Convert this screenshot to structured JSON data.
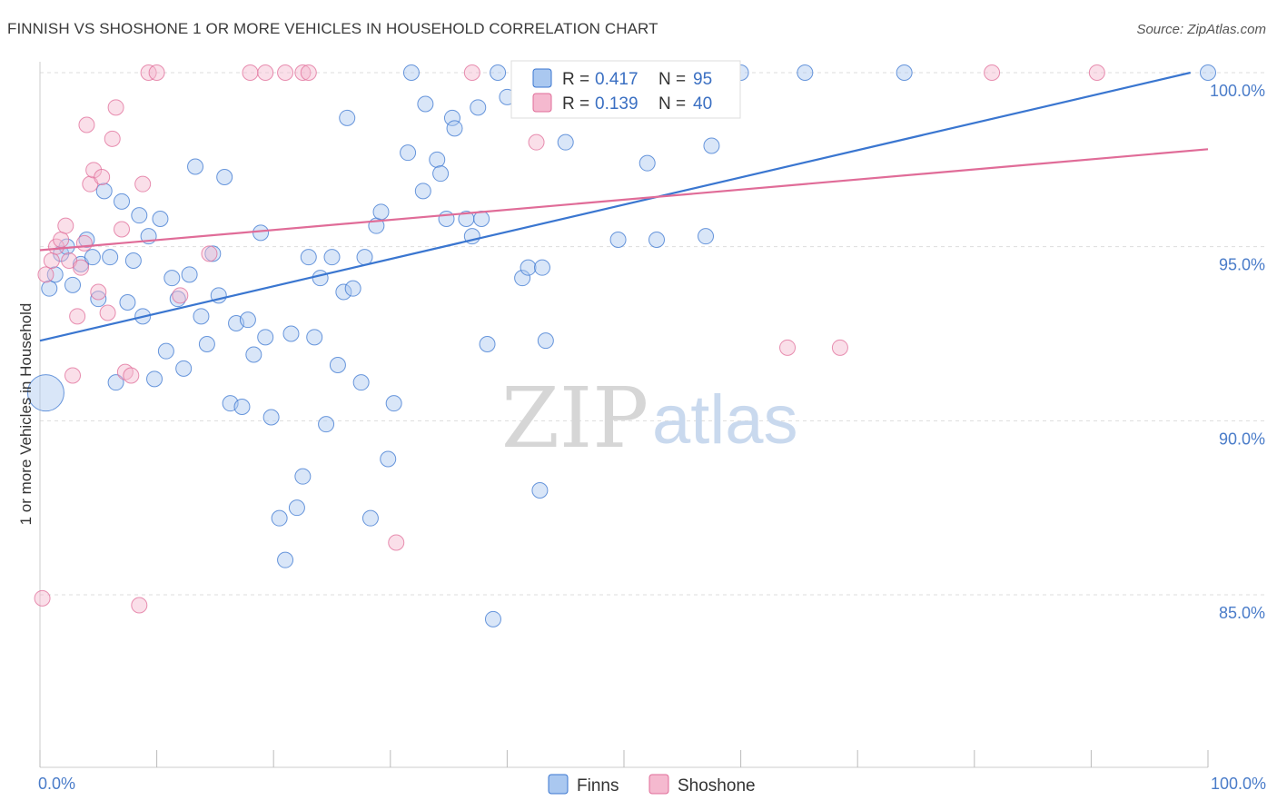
{
  "header": {
    "title": "FINNISH VS SHOSHONE 1 OR MORE VEHICLES IN HOUSEHOLD CORRELATION CHART",
    "source": "Source: ZipAtlas.com"
  },
  "watermark": {
    "zip": "ZIP",
    "atlas": "atlas"
  },
  "colors": {
    "finns": "#3a76d0",
    "finns_fill": "#aac8f0",
    "shoshone": "#e06c98",
    "shoshone_fill": "#f5b9cf",
    "tick": "#4a7cc9",
    "grid": "#dddddd"
  },
  "stats_legend": {
    "finns": {
      "r_label": "R = ",
      "r_value": "0.417",
      "n_label": "N = ",
      "n_value": "95"
    },
    "shoshone": {
      "r_label": "R = ",
      "r_value": "0.139",
      "n_label": "N = ",
      "n_value": "40"
    }
  },
  "chart_data": {
    "type": "scatter",
    "xlabel": "",
    "ylabel": "1 or more Vehicles in Household",
    "xlim": [
      0,
      100
    ],
    "ylim": [
      80.6,
      100.9
    ],
    "x_tick_labels": [
      {
        "value": 0,
        "label": "0.0%"
      },
      {
        "value": 100,
        "label": "100.0%"
      }
    ],
    "y_ticks": [
      {
        "value": 100,
        "label": "100.0%"
      },
      {
        "value": 95,
        "label": "95.0%"
      },
      {
        "value": 90,
        "label": "90.0%"
      },
      {
        "value": 85,
        "label": "85.0%"
      }
    ],
    "legend": [
      "Finns",
      "Shoshone"
    ],
    "legend_position": "bottom-center",
    "grid": true,
    "series": [
      {
        "name": "Finns",
        "trend": {
          "x": [
            0,
            98.5
          ],
          "y": [
            92.3,
            100.0
          ]
        },
        "points": [
          [
            0.5,
            90.8
          ],
          [
            0.8,
            93.8
          ],
          [
            1.3,
            94.2
          ],
          [
            1.8,
            94.8
          ],
          [
            2.3,
            95.0
          ],
          [
            2.8,
            93.9
          ],
          [
            3.5,
            94.5
          ],
          [
            4.0,
            95.2
          ],
          [
            4.5,
            94.7
          ],
          [
            5.0,
            93.5
          ],
          [
            5.5,
            96.6
          ],
          [
            6.0,
            94.7
          ],
          [
            6.5,
            91.1
          ],
          [
            7.0,
            96.3
          ],
          [
            7.5,
            93.4
          ],
          [
            8.0,
            94.6
          ],
          [
            8.5,
            95.9
          ],
          [
            8.8,
            93.0
          ],
          [
            9.3,
            95.3
          ],
          [
            9.8,
            91.2
          ],
          [
            10.3,
            95.8
          ],
          [
            10.8,
            92.0
          ],
          [
            11.3,
            94.1
          ],
          [
            11.8,
            93.5
          ],
          [
            12.3,
            91.5
          ],
          [
            12.8,
            94.2
          ],
          [
            13.3,
            97.3
          ],
          [
            13.8,
            93.0
          ],
          [
            14.3,
            92.2
          ],
          [
            14.8,
            94.8
          ],
          [
            15.3,
            93.6
          ],
          [
            15.8,
            97.0
          ],
          [
            16.3,
            90.5
          ],
          [
            16.8,
            92.8
          ],
          [
            17.3,
            90.4
          ],
          [
            17.8,
            92.9
          ],
          [
            18.3,
            91.9
          ],
          [
            18.9,
            95.4
          ],
          [
            19.3,
            92.4
          ],
          [
            19.8,
            90.1
          ],
          [
            20.5,
            87.2
          ],
          [
            21.0,
            86.0
          ],
          [
            21.5,
            92.5
          ],
          [
            22.0,
            87.5
          ],
          [
            22.5,
            88.4
          ],
          [
            23.0,
            94.7
          ],
          [
            23.5,
            92.4
          ],
          [
            24.0,
            94.1
          ],
          [
            24.5,
            89.9
          ],
          [
            25.0,
            94.7
          ],
          [
            25.5,
            91.6
          ],
          [
            26.0,
            93.7
          ],
          [
            26.3,
            98.7
          ],
          [
            26.8,
            93.8
          ],
          [
            27.5,
            91.1
          ],
          [
            27.8,
            94.7
          ],
          [
            28.3,
            87.2
          ],
          [
            28.8,
            95.6
          ],
          [
            29.2,
            96.0
          ],
          [
            29.8,
            88.9
          ],
          [
            30.3,
            90.5
          ],
          [
            31.5,
            97.7
          ],
          [
            31.8,
            100.0
          ],
          [
            32.8,
            96.6
          ],
          [
            33.0,
            99.1
          ],
          [
            34.0,
            97.5
          ],
          [
            34.3,
            97.1
          ],
          [
            34.8,
            95.8
          ],
          [
            35.3,
            98.7
          ],
          [
            35.5,
            98.4
          ],
          [
            36.5,
            95.8
          ],
          [
            37.0,
            95.3
          ],
          [
            37.5,
            99.0
          ],
          [
            37.8,
            95.8
          ],
          [
            38.3,
            92.2
          ],
          [
            38.8,
            84.3
          ],
          [
            39.2,
            100.0
          ],
          [
            40.0,
            99.3
          ],
          [
            41.3,
            94.1
          ],
          [
            41.8,
            94.4
          ],
          [
            42.8,
            88.0
          ],
          [
            43.0,
            94.4
          ],
          [
            43.3,
            92.3
          ],
          [
            45.0,
            98.0
          ],
          [
            47.0,
            100.0
          ],
          [
            49.5,
            95.2
          ],
          [
            52.0,
            97.4
          ],
          [
            52.8,
            95.2
          ],
          [
            55.3,
            100.0
          ],
          [
            57.0,
            95.3
          ],
          [
            57.5,
            97.9
          ],
          [
            60.0,
            100.0
          ],
          [
            65.5,
            100.0
          ],
          [
            74.0,
            100.0
          ],
          [
            100.0,
            100.0
          ]
        ]
      },
      {
        "name": "Shoshone",
        "trend": {
          "x": [
            0,
            100
          ],
          "y": [
            94.9,
            97.8
          ]
        },
        "points": [
          [
            0.2,
            84.9
          ],
          [
            0.5,
            94.2
          ],
          [
            1.0,
            94.6
          ],
          [
            1.4,
            95.0
          ],
          [
            1.8,
            95.2
          ],
          [
            2.2,
            95.6
          ],
          [
            2.5,
            94.6
          ],
          [
            2.8,
            91.3
          ],
          [
            3.2,
            93.0
          ],
          [
            3.5,
            94.4
          ],
          [
            3.8,
            95.1
          ],
          [
            4.0,
            98.5
          ],
          [
            4.3,
            96.8
          ],
          [
            4.6,
            97.2
          ],
          [
            5.0,
            93.7
          ],
          [
            5.3,
            97.0
          ],
          [
            5.8,
            93.1
          ],
          [
            6.2,
            98.1
          ],
          [
            6.5,
            99.0
          ],
          [
            7.0,
            95.5
          ],
          [
            7.3,
            91.4
          ],
          [
            7.8,
            91.3
          ],
          [
            8.5,
            84.7
          ],
          [
            8.8,
            96.8
          ],
          [
            9.3,
            100.0
          ],
          [
            10.0,
            100.0
          ],
          [
            12.0,
            93.6
          ],
          [
            14.5,
            94.8
          ],
          [
            18.0,
            100.0
          ],
          [
            19.3,
            100.0
          ],
          [
            21.0,
            100.0
          ],
          [
            22.5,
            100.0
          ],
          [
            23.0,
            100.0
          ],
          [
            30.5,
            86.5
          ],
          [
            37.0,
            100.0
          ],
          [
            42.5,
            98.0
          ],
          [
            64.0,
            92.1
          ],
          [
            68.5,
            92.1
          ],
          [
            81.5,
            100.0
          ],
          [
            90.5,
            100.0
          ]
        ]
      }
    ]
  }
}
